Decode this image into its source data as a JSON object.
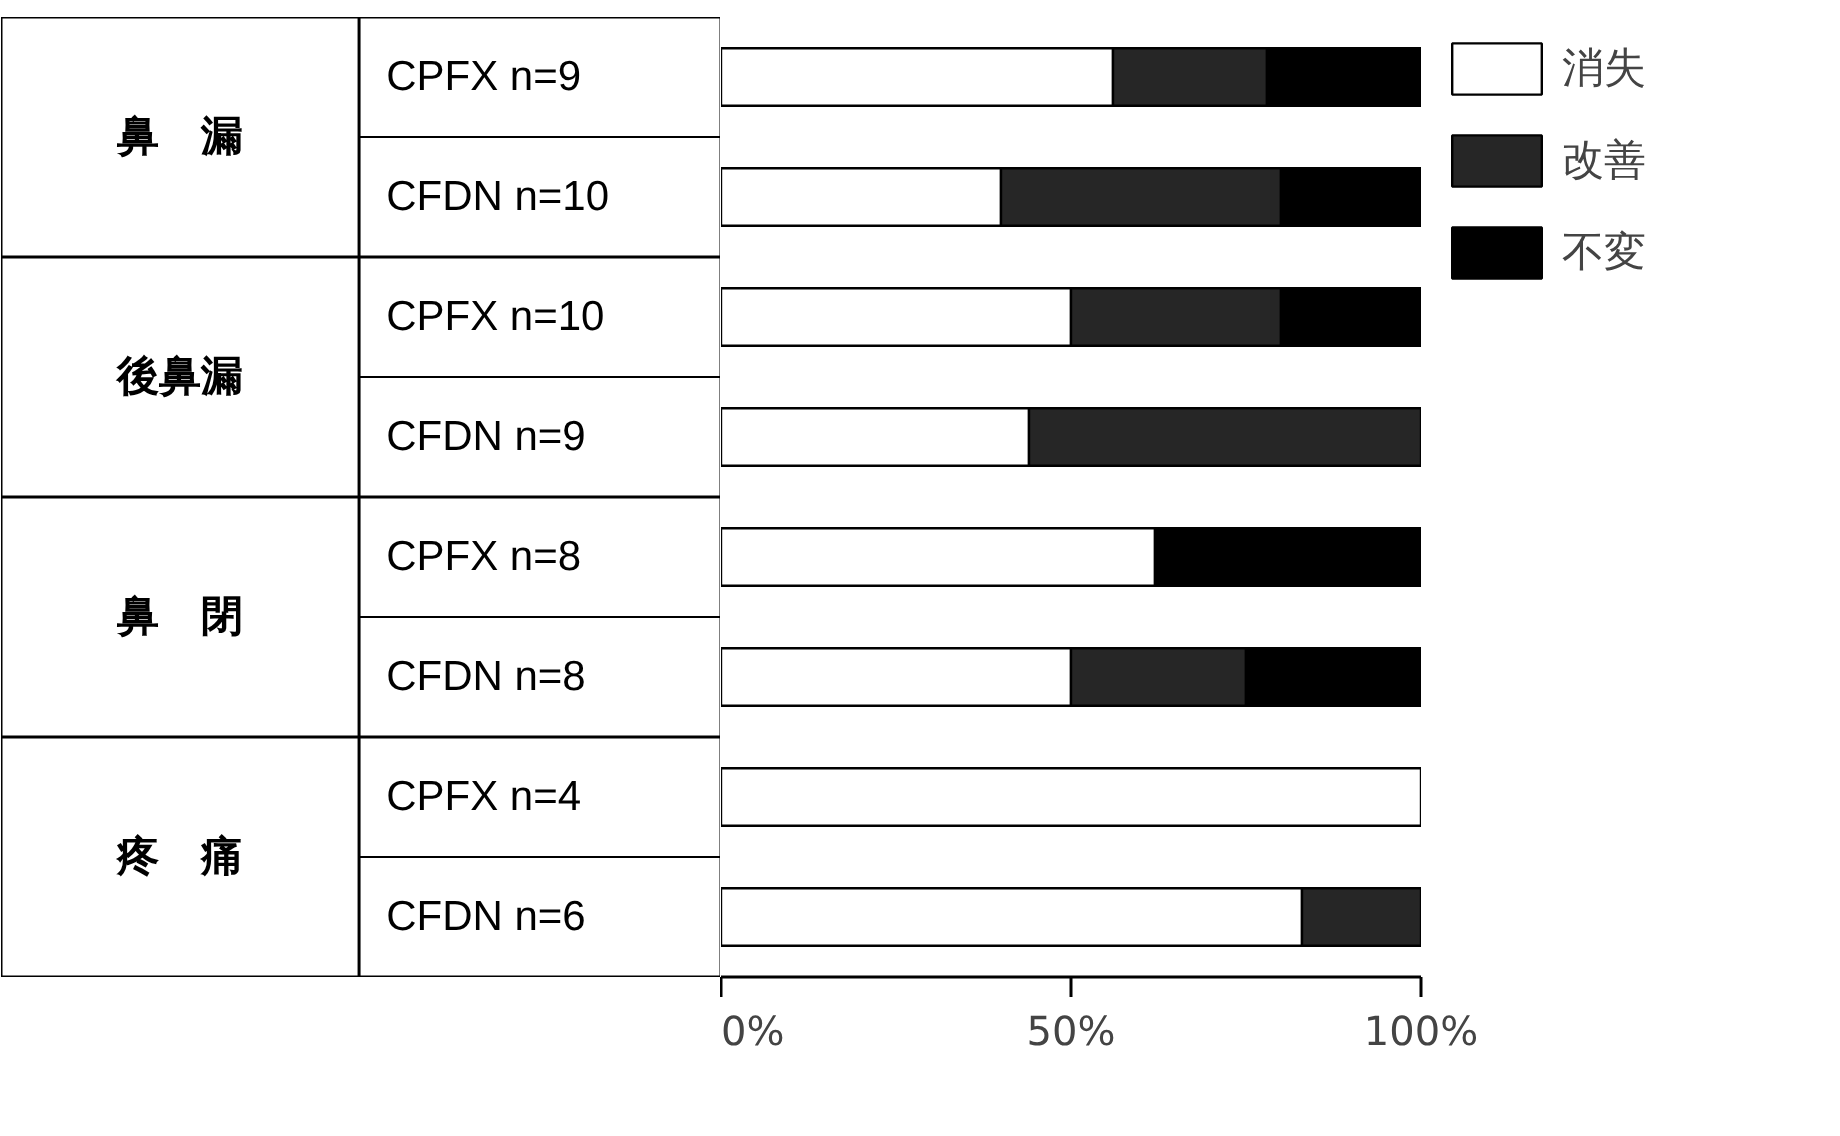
{
  "chart_data": {
    "type": "bar",
    "orientation": "horizontal",
    "stacked": true,
    "categories": [
      "CPFX n=9",
      "CFDN n=10",
      "CPFX n=10",
      "CFDN n=9",
      "CPFX n=8",
      "CFDN n=8",
      "CPFX n=4",
      "CFDN n=6"
    ],
    "series": [
      {
        "name": "消失",
        "color": "#ffffff",
        "values": [
          56,
          40,
          50,
          44,
          62,
          50,
          100,
          83
        ]
      },
      {
        "name": "改善",
        "color": "#262626",
        "values": [
          22,
          40,
          30,
          56,
          0,
          25,
          0,
          17
        ]
      },
      {
        "name": "不変",
        "color": "#000000",
        "values": [
          22,
          20,
          20,
          0,
          38,
          25,
          0,
          0
        ]
      }
    ],
    "annotations": [
      "鼻　漏",
      "後鼻漏",
      "鼻　閉",
      "疼　痛"
    ],
    "xlim": [
      0,
      100
    ],
    "xticks": [
      {
        "value": 0,
        "label": "0%"
      },
      {
        "value": 50,
        "label": "50%"
      },
      {
        "value": 100,
        "label": "100%"
      }
    ],
    "legend": "top right",
    "grid": false
  }
}
